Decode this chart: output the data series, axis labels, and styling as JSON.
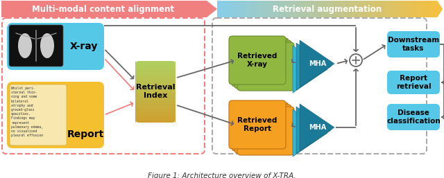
{
  "bg_color": "#ffffff",
  "section_left_label": "Multi-modal content alignment",
  "section_right_label": "Retrieval augmentation",
  "xray_label": "X-ray",
  "report_label": "Report",
  "retrieval_index_label": "Retrieval\nIndex",
  "retrieved_xray_label": "Retrieved\nX-ray",
  "retrieved_report_label": "Retrieved\nReport",
  "mha_label": "MHA",
  "downstream_label": "Downstream\ntasks",
  "report_retrieval_label": "Report\nretrieval",
  "disease_label": "Disease\nclassification",
  "caption": "Figure 1: Architecture overview of X-TRA.",
  "arrow_color": "#666666",
  "pink_arrow_color": "#f08080",
  "pink_banner_color": "#f08080",
  "blue_banner_color": "#87ceeb",
  "yellow_banner_color": "#f5c040",
  "xray_box_color": "#55c8e8",
  "report_box_color": "#f5c030",
  "retrieval_index_color_top": "#b8d060",
  "retrieval_index_color_bot": "#c8a830",
  "retrieved_xray_color": "#90b840",
  "retrieved_report_color": "#f5a020",
  "mha_color_front": "#55b8d0",
  "mha_color_back": "#3898b8",
  "output_box_color": "#55c8e8",
  "dashed_pink": "#f08080",
  "dashed_gray": "#aaaaaa",
  "report_text": "Whilst peri-\nsternal thin-\nning and some\nbilateral\natrophy and\nground-glass\nopacities.\nFindings may\nrepresent\npulmonary edema,\nno visualised\npleural effusion"
}
